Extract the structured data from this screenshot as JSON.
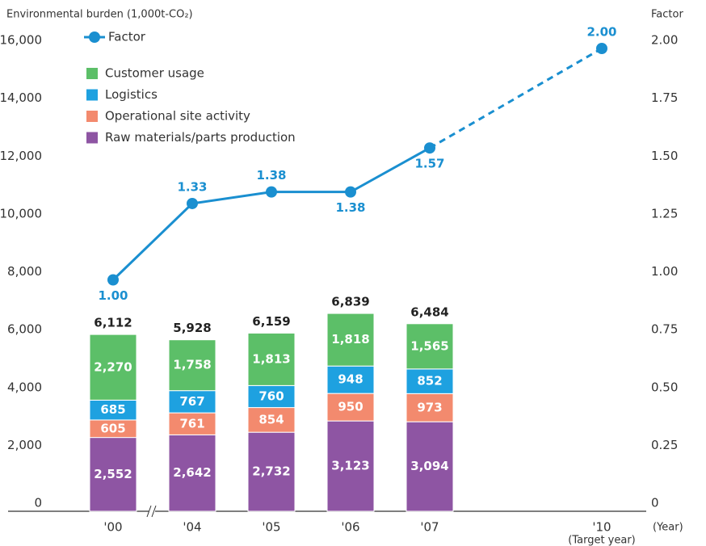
{
  "chart_data": {
    "type": "bar",
    "stacked": true,
    "y_axis_title": "Environmental burden (1,000t-CO₂)",
    "y2_axis_title": "Factor",
    "x_axis_unit": "(Year)",
    "categories": [
      "'00",
      "'04",
      "'05",
      "'06",
      "'07",
      "'10"
    ],
    "category_notes": [
      null,
      null,
      null,
      null,
      null,
      "(Target year)"
    ],
    "series": [
      {
        "name": "Raw materials/parts production",
        "color": "#8e55a3",
        "values": [
          2552,
          2642,
          2732,
          3123,
          3094,
          null
        ],
        "value_labels": [
          "2,552",
          "2,642",
          "2,732",
          "3,123",
          "3,094",
          null
        ]
      },
      {
        "name": "Operational site activity",
        "color": "#f38a6e",
        "values": [
          605,
          761,
          854,
          950,
          973,
          null
        ],
        "value_labels": [
          "605",
          "761",
          "854",
          "950",
          "973",
          null
        ]
      },
      {
        "name": "Logistics",
        "color": "#1ea1e0",
        "values": [
          685,
          767,
          760,
          948,
          852,
          null
        ],
        "value_labels": [
          "685",
          "767",
          "760",
          "948",
          "852",
          null
        ]
      },
      {
        "name": "Customer usage",
        "color": "#5cbf68",
        "values": [
          2270,
          1758,
          1813,
          1818,
          1565,
          null
        ],
        "value_labels": [
          "2,270",
          "1,758",
          "1,813",
          "1,818",
          "1,565",
          null
        ]
      },
      {
        "name": "Factor",
        "type": "line",
        "axis": "y2",
        "color": "#1a8fd0",
        "dash_from_index": 4,
        "values": [
          1.0,
          1.33,
          1.38,
          1.38,
          1.57,
          2.0
        ],
        "value_labels": [
          "1.00",
          "1.33",
          "1.38",
          "1.38",
          "1.57",
          "2.00"
        ]
      }
    ],
    "totals": {
      "values": [
        6112,
        5928,
        6159,
        6839,
        6484,
        null
      ],
      "value_labels": [
        "6,112",
        "5,928",
        "6,159",
        "6,839",
        "6,484",
        null
      ]
    },
    "ylim": [
      0,
      16000
    ],
    "yticks": [
      0,
      {
        "value": 2000,
        "label": "2,000"
      },
      {
        "value": 4000,
        "label": "4,000"
      },
      {
        "value": 6000,
        "label": "6,000"
      },
      {
        "value": 8000,
        "label": "8,000"
      },
      {
        "value": 10000,
        "label": "10,000"
      },
      {
        "value": 12000,
        "label": "12,000"
      },
      {
        "value": 14000,
        "label": "14,000"
      },
      {
        "value": 16000,
        "label": "16,000"
      }
    ],
    "y2lim": [
      0,
      2
    ],
    "y2ticks": [
      0,
      0.25,
      {
        "value": 0.5,
        "label": "0.50"
      },
      0.75,
      {
        "value": 1,
        "label": "1.00"
      },
      1.25,
      {
        "value": 1.5,
        "label": "1.50"
      },
      1.75,
      {
        "value": 2,
        "label": "2.00"
      }
    ],
    "grid": false
  }
}
